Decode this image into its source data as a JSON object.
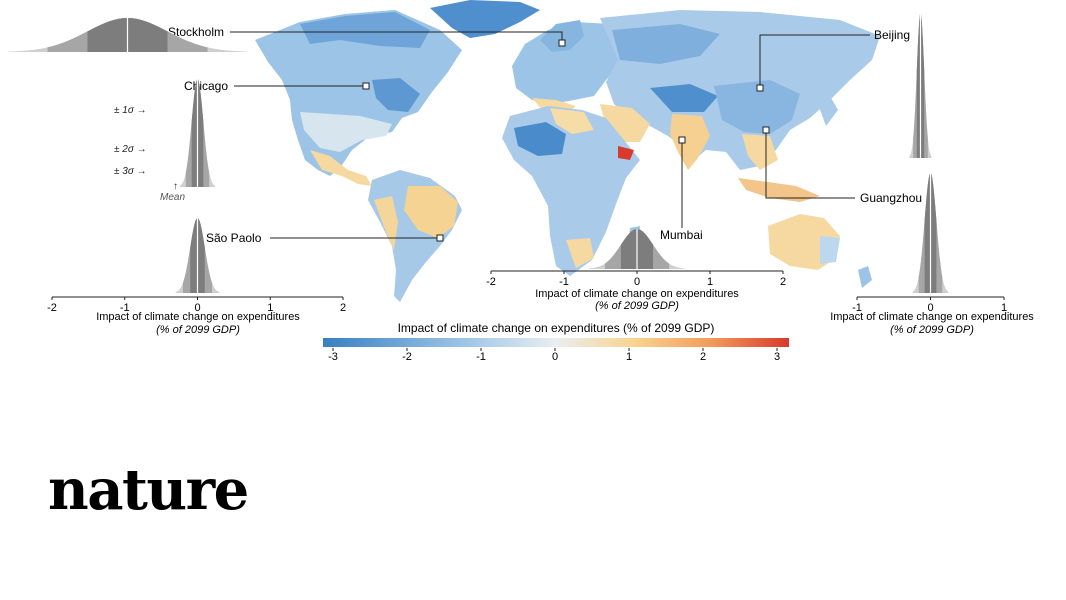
{
  "figure": {
    "map_title": "Impact of climate change on expenditures (% of 2099 GDP)",
    "legend_ticks": [
      "-3",
      "-2",
      "-1",
      "0",
      "1",
      "2",
      "3"
    ],
    "legend_range": [
      -3,
      3
    ],
    "legend_colors": [
      "#3a7fc2",
      "#6fa6d8",
      "#a9cbe9",
      "#e9eef0",
      "#f9d48f",
      "#f29b5a",
      "#d73a2f"
    ],
    "distribution_colors": {
      "sigma1": "#7d7d7d",
      "sigma2": "#a6a6a6",
      "sigma3": "#cfcfcf",
      "mean_line": "#ffffff"
    },
    "inset_axis_title": "Impact of climate change on expenditures",
    "inset_axis_units": "(% of 2099 GDP)",
    "annotations": {
      "sigma1": "± 1σ →",
      "sigma2": "± 2σ →",
      "sigma3": "± 3σ →",
      "mean": "Mean"
    },
    "cities": [
      {
        "id": "stockholm",
        "label": "Stockholm",
        "sd": 0.55
      },
      {
        "id": "chicago",
        "label": "Chicago",
        "sd": 0.08
      },
      {
        "id": "sao-paolo",
        "label": "São Paolo",
        "sd": 0.1
      },
      {
        "id": "mumbai",
        "label": "Mumbai",
        "sd": 0.22
      },
      {
        "id": "beijing",
        "label": "Beijing",
        "sd": 0.05
      },
      {
        "id": "guangzhou",
        "label": "Guangzhou",
        "sd": 0.08
      }
    ],
    "axes": {
      "left": {
        "ticks": [
          "-2",
          "-1",
          "0",
          "1",
          "2"
        ],
        "range": [
          -2,
          2
        ]
      },
      "middle": {
        "ticks": [
          "-2",
          "-1",
          "0",
          "1",
          "2"
        ],
        "range": [
          -2,
          2
        ]
      },
      "right": {
        "ticks": [
          "-1",
          "0",
          "1"
        ],
        "range": [
          -1,
          1
        ]
      }
    }
  },
  "brand": {
    "logo": "nature"
  }
}
